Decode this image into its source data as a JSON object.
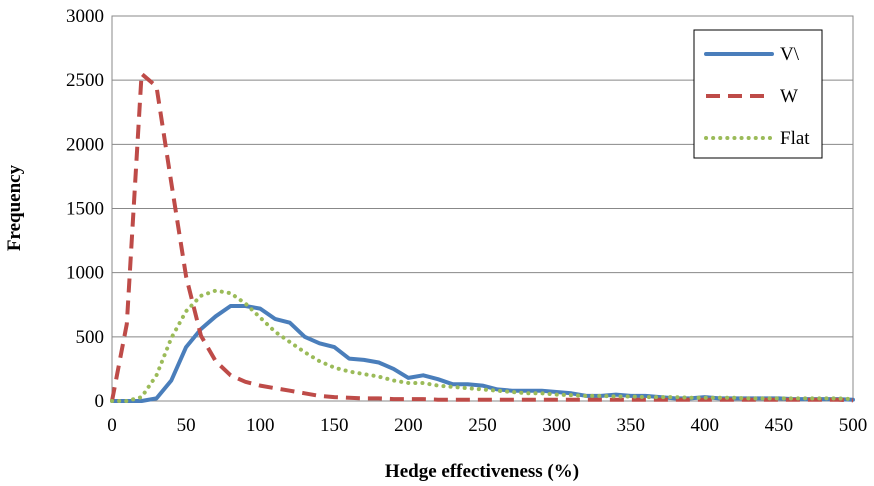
{
  "chart_data": {
    "type": "line",
    "xlabel": "Hedge effectiveness (%)",
    "ylabel": "Frequency",
    "xlim": [
      0,
      500
    ],
    "ylim": [
      0,
      3000
    ],
    "xticks": [
      0,
      50,
      100,
      150,
      200,
      250,
      300,
      350,
      400,
      450,
      500
    ],
    "yticks": [
      0,
      500,
      1000,
      1500,
      2000,
      2500,
      3000
    ],
    "grid": "horizontal",
    "legend_position": "top-right",
    "x": [
      0,
      10,
      20,
      30,
      40,
      50,
      60,
      70,
      80,
      90,
      100,
      110,
      120,
      130,
      140,
      150,
      160,
      170,
      180,
      190,
      200,
      210,
      220,
      230,
      240,
      250,
      260,
      270,
      280,
      290,
      300,
      310,
      320,
      330,
      340,
      350,
      360,
      370,
      380,
      390,
      400,
      410,
      420,
      430,
      440,
      450,
      460,
      470,
      480,
      490,
      500
    ],
    "series": [
      {
        "name": "V\\",
        "color": "#4a7ebb",
        "dash": "solid",
        "values": [
          0,
          0,
          0,
          20,
          160,
          420,
          560,
          660,
          740,
          740,
          720,
          640,
          610,
          500,
          450,
          420,
          330,
          320,
          300,
          250,
          180,
          200,
          170,
          130,
          130,
          120,
          90,
          80,
          80,
          80,
          70,
          60,
          40,
          40,
          50,
          40,
          40,
          30,
          20,
          20,
          30,
          20,
          20,
          20,
          20,
          20,
          15,
          15,
          15,
          15,
          10
        ]
      },
      {
        "name": "W",
        "color": "#be4b48",
        "dash": "dashed",
        "values": [
          0,
          600,
          2550,
          2450,
          1700,
          970,
          510,
          310,
          200,
          150,
          120,
          100,
          80,
          60,
          40,
          30,
          25,
          20,
          20,
          15,
          15,
          15,
          10,
          10,
          10,
          10,
          10,
          10,
          10,
          10,
          10,
          10,
          10,
          10,
          10,
          10,
          10,
          10,
          10,
          10,
          10,
          10,
          10,
          10,
          10,
          10,
          10,
          10,
          10,
          10,
          5
        ]
      },
      {
        "name": "Flat",
        "color": "#9bbb59",
        "dash": "dotted",
        "values": [
          0,
          0,
          30,
          200,
          490,
          700,
          820,
          860,
          840,
          760,
          650,
          540,
          460,
          380,
          310,
          260,
          230,
          210,
          190,
          160,
          140,
          140,
          120,
          110,
          100,
          90,
          80,
          70,
          60,
          60,
          50,
          45,
          40,
          40,
          35,
          35,
          30,
          30,
          30,
          25,
          25,
          25,
          25,
          20,
          20,
          20,
          20,
          20,
          20,
          20,
          15
        ]
      }
    ]
  }
}
